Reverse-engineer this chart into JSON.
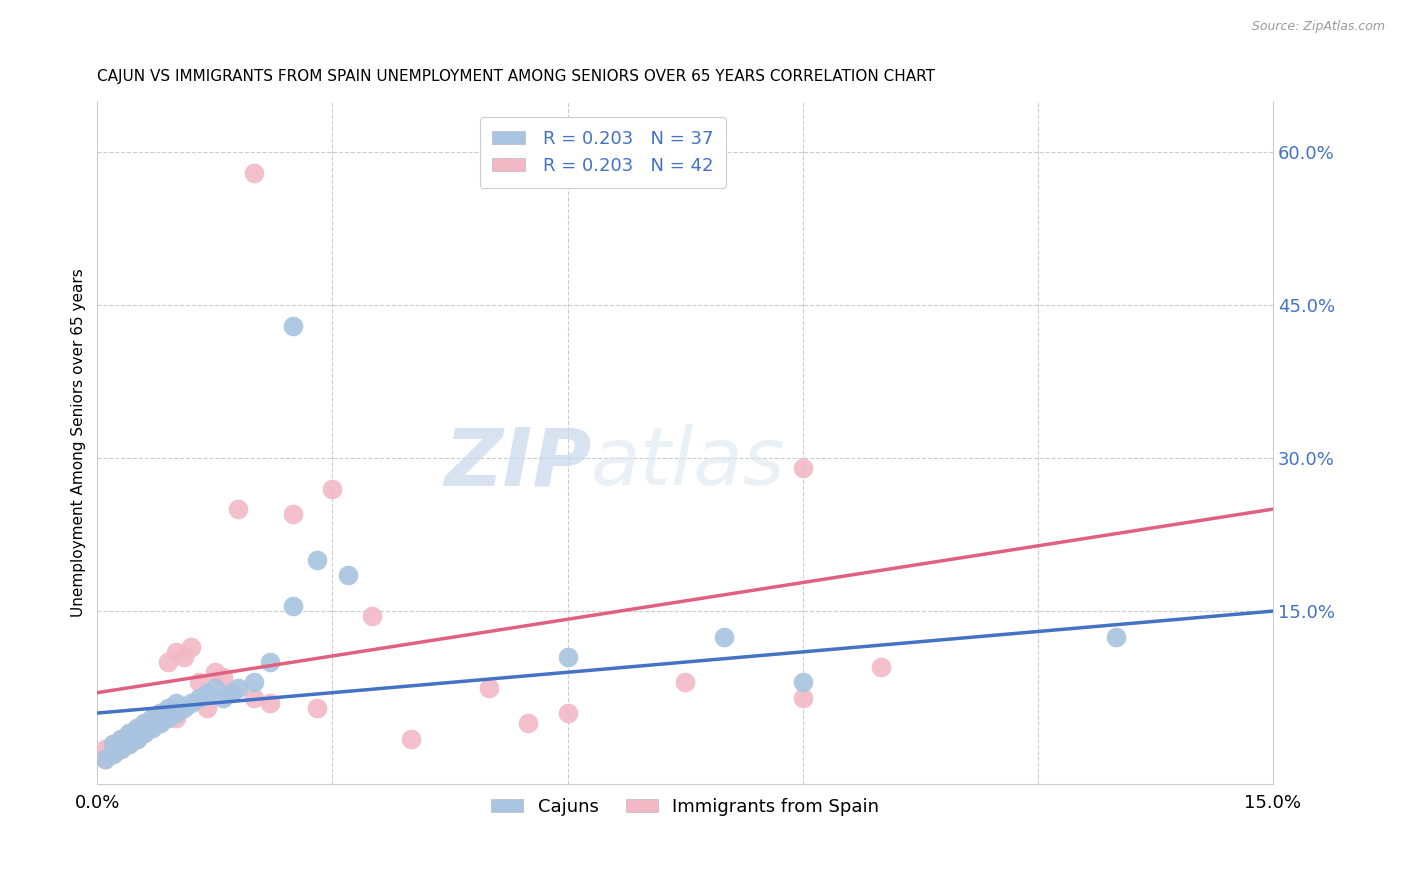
{
  "title": "CAJUN VS IMMIGRANTS FROM SPAIN UNEMPLOYMENT AMONG SENIORS OVER 65 YEARS CORRELATION CHART",
  "source": "Source: ZipAtlas.com",
  "xlabel_bottom_left": "0.0%",
  "xlabel_bottom_right": "15.0%",
  "ylabel": "Unemployment Among Seniors over 65 years",
  "right_yticks": [
    "60.0%",
    "45.0%",
    "30.0%",
    "15.0%"
  ],
  "right_ytick_vals": [
    0.6,
    0.45,
    0.3,
    0.15
  ],
  "xmin": 0.0,
  "xmax": 0.15,
  "ymin": -0.02,
  "ymax": 0.65,
  "legend_r_cajun": "R = 0.203",
  "legend_n_cajun": "N = 37",
  "legend_r_spain": "R = 0.203",
  "legend_n_spain": "N = 42",
  "legend_label_cajun": "Cajuns",
  "legend_label_spain": "Immigrants from Spain",
  "color_cajun": "#a8c4e0",
  "color_spain": "#f2b8c6",
  "color_blue": "#4472c4",
  "color_pink": "#e06080",
  "color_text_blue": "#4472c4",
  "watermark_zip": "ZIP",
  "watermark_atlas": "atlas",
  "cajun_x": [
    0.001,
    0.002,
    0.002,
    0.003,
    0.003,
    0.004,
    0.004,
    0.005,
    0.005,
    0.006,
    0.006,
    0.007,
    0.007,
    0.008,
    0.008,
    0.009,
    0.009,
    0.01,
    0.01,
    0.011,
    0.012,
    0.013,
    0.014,
    0.015,
    0.016,
    0.017,
    0.018,
    0.02,
    0.022,
    0.025,
    0.028,
    0.032,
    0.025,
    0.06,
    0.08,
    0.09,
    0.13
  ],
  "cajun_y": [
    0.005,
    0.01,
    0.02,
    0.015,
    0.025,
    0.02,
    0.03,
    0.025,
    0.035,
    0.03,
    0.04,
    0.035,
    0.045,
    0.04,
    0.05,
    0.045,
    0.055,
    0.05,
    0.06,
    0.055,
    0.06,
    0.065,
    0.07,
    0.075,
    0.065,
    0.07,
    0.075,
    0.08,
    0.1,
    0.155,
    0.2,
    0.185,
    0.43,
    0.105,
    0.125,
    0.08,
    0.125
  ],
  "spain_x": [
    0.001,
    0.001,
    0.002,
    0.002,
    0.003,
    0.003,
    0.004,
    0.004,
    0.005,
    0.005,
    0.006,
    0.006,
    0.007,
    0.007,
    0.008,
    0.008,
    0.009,
    0.01,
    0.01,
    0.011,
    0.012,
    0.013,
    0.014,
    0.015,
    0.016,
    0.017,
    0.018,
    0.02,
    0.022,
    0.025,
    0.028,
    0.03,
    0.035,
    0.04,
    0.05,
    0.055,
    0.06,
    0.075,
    0.09,
    0.1,
    0.02,
    0.09
  ],
  "spain_y": [
    0.005,
    0.015,
    0.01,
    0.02,
    0.015,
    0.025,
    0.02,
    0.03,
    0.025,
    0.035,
    0.03,
    0.04,
    0.035,
    0.045,
    0.04,
    0.05,
    0.1,
    0.045,
    0.11,
    0.105,
    0.115,
    0.08,
    0.055,
    0.09,
    0.085,
    0.07,
    0.25,
    0.065,
    0.06,
    0.245,
    0.055,
    0.27,
    0.145,
    0.025,
    0.075,
    0.04,
    0.05,
    0.08,
    0.065,
    0.095,
    0.58,
    0.29
  ],
  "trend_cajun_x0": 0.0,
  "trend_cajun_x1": 0.15,
  "trend_cajun_y0": 0.05,
  "trend_cajun_y1": 0.15,
  "trend_spain_x0": 0.0,
  "trend_spain_x1": 0.15,
  "trend_spain_y0": 0.07,
  "trend_spain_y1": 0.25
}
